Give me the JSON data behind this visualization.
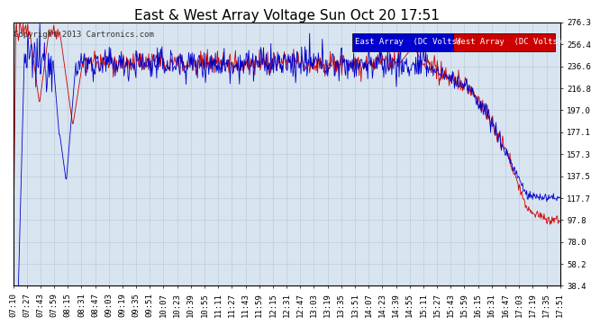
{
  "title": "East & West Array Voltage Sun Oct 20 17:51",
  "copyright": "Copyright 2013 Cartronics.com",
  "legend_east": "East Array  (DC Volts)",
  "legend_west": "West Array  (DC Volts)",
  "east_color": "#0000cc",
  "west_color": "#cc0000",
  "background_color": "#d8e4f0",
  "plot_bg_color": "#d8e4f0",
  "fig_bg_color": "#ffffff",
  "grid_color": "#aabbcc",
  "yticks": [
    38.4,
    58.2,
    78.0,
    97.8,
    117.7,
    137.5,
    157.3,
    177.1,
    197.0,
    216.8,
    236.6,
    256.4,
    276.3
  ],
  "xtick_labels": [
    "07:10",
    "07:27",
    "07:43",
    "07:59",
    "08:15",
    "08:31",
    "08:47",
    "09:03",
    "09:19",
    "09:35",
    "09:51",
    "10:07",
    "10:23",
    "10:39",
    "10:55",
    "11:11",
    "11:27",
    "11:43",
    "11:59",
    "12:15",
    "12:31",
    "12:47",
    "13:03",
    "13:19",
    "13:35",
    "13:51",
    "14:07",
    "14:23",
    "14:39",
    "14:55",
    "15:11",
    "15:27",
    "15:43",
    "15:59",
    "16:15",
    "16:31",
    "16:47",
    "17:03",
    "17:19",
    "17:35",
    "17:51"
  ],
  "ylim_min": 38.4,
  "ylim_max": 276.3,
  "title_fontsize": 11,
  "axis_fontsize": 6.5,
  "copyright_fontsize": 6.5,
  "legend_fontsize": 6.5
}
